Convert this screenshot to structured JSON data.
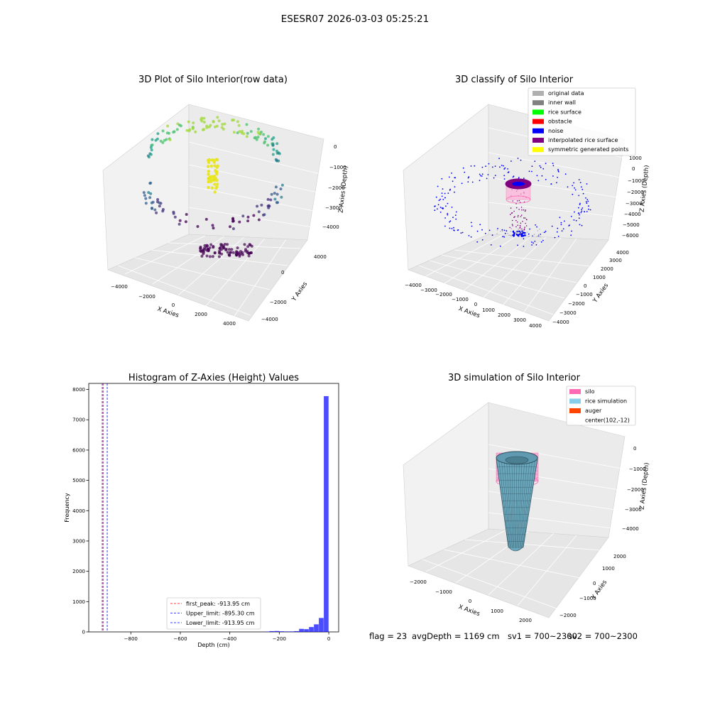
{
  "suptitle": "ESESR07 2026-03-03 05:25:21",
  "chart_data": [
    {
      "type": "scatter",
      "projection": "3d",
      "title": "3D Plot of Silo Interior(row data)",
      "xlabel": "X Axies",
      "ylabel": "Y Axies",
      "zlabel": "Z Axies (Depth)",
      "xticks": [
        "−4000",
        "−2000",
        "0",
        "2000",
        "4000"
      ],
      "yticks": [
        "−4000",
        "−2000",
        "0",
        "2000",
        "4000"
      ],
      "zticks": [
        "0",
        "−1000",
        "−2000",
        "−3000",
        "−4000"
      ],
      "xlim": [
        -4500,
        4500
      ],
      "ylim": [
        -4500,
        4500
      ],
      "zlim": [
        -4600,
        200
      ],
      "colormap": "viridis",
      "description_of_points": "ring of points around silo wall colored by depth, dense purple cluster at bottom, yellow vertical cluster near center top"
    },
    {
      "type": "scatter",
      "projection": "3d",
      "title": "3D classify of Silo Interior",
      "xlabel": "X Axies",
      "ylabel": "Y Axies",
      "zlabel": "Z Axies (Depth)",
      "xticks": [
        "−4000",
        "−3000",
        "−2000",
        "−1000",
        "0",
        "1000",
        "2000",
        "3000",
        "4000"
      ],
      "yticks": [
        "−4000",
        "−3000",
        "−2000",
        "−1000",
        "0",
        "1000",
        "2000",
        "3000",
        "4000"
      ],
      "zticks": [
        "1000",
        "0",
        "−1000",
        "−2000",
        "−3000",
        "−4000",
        "−5000",
        "−6000"
      ],
      "legend_position": "top-right",
      "legend": [
        {
          "label": "original data",
          "color": "#b0b0b0"
        },
        {
          "label": "inner wall",
          "color": "#808080"
        },
        {
          "label": "rice surface",
          "color": "#00ff00"
        },
        {
          "label": "obstacle",
          "color": "#ff0000"
        },
        {
          "label": "noise",
          "color": "#0000ff"
        },
        {
          "label": "interpolated rice surface",
          "color": "#800080"
        },
        {
          "label": "symmetric generated points",
          "color": "#ffff00"
        }
      ]
    },
    {
      "type": "bar",
      "title": "Histogram of Z-Axies (Height) Values",
      "xlabel": "Depth (cm)",
      "ylabel": "Frequency",
      "xlim": [
        -970,
        40
      ],
      "ylim": [
        0,
        8200
      ],
      "xticks": [
        -800,
        -600,
        -400,
        -200,
        0
      ],
      "xtick_labels": [
        "−800",
        "−600",
        "−400",
        "−200",
        "0"
      ],
      "yticks": [
        0,
        1000,
        2000,
        3000,
        4000,
        5000,
        6000,
        7000,
        8000
      ],
      "bar_color": "#0000ff",
      "bins": [
        {
          "x0": -260,
          "x1": -240,
          "count": 10
        },
        {
          "x0": -240,
          "x1": -220,
          "count": 25
        },
        {
          "x0": -220,
          "x1": -200,
          "count": 30
        },
        {
          "x0": -200,
          "x1": -180,
          "count": 20
        },
        {
          "x0": -180,
          "x1": -160,
          "count": 15
        },
        {
          "x0": -160,
          "x1": -140,
          "count": 15
        },
        {
          "x0": -140,
          "x1": -120,
          "count": 25
        },
        {
          "x0": -120,
          "x1": -100,
          "count": 100
        },
        {
          "x0": -100,
          "x1": -80,
          "count": 90
        },
        {
          "x0": -80,
          "x1": -60,
          "count": 160
        },
        {
          "x0": -60,
          "x1": -40,
          "count": 250
        },
        {
          "x0": -40,
          "x1": -20,
          "count": 460
        },
        {
          "x0": -20,
          "x1": 0,
          "count": 7780
        }
      ],
      "vlines": [
        {
          "x": -913.95,
          "color": "#ff0000",
          "label": "first_peak: -913.95 cm"
        },
        {
          "x": -895.3,
          "color": "#0000ff",
          "label": "Upper_limit: -895.30 cm"
        },
        {
          "x": -913.95,
          "color": "#0000ff",
          "label": "Lower_limit: -913.95 cm"
        }
      ],
      "legend_position": "bottom-center"
    },
    {
      "type": "surface",
      "projection": "3d",
      "title": "3D simulation of Silo Interior",
      "xlabel": "X Axies",
      "ylabel": "Y Axies",
      "zlabel": "Z Axies (Depth)",
      "xticks": [
        "−2000",
        "−1000",
        "0",
        "1000",
        "2000"
      ],
      "yticks": [
        "−2000",
        "−1000",
        "0",
        "1000",
        "2000"
      ],
      "zticks": [
        "0",
        "−1000",
        "−2000",
        "−3000",
        "−4000"
      ],
      "legend_position": "top-right",
      "legend": [
        {
          "label": "silo",
          "color": "#ff69b4"
        },
        {
          "label": "rice simulation",
          "color": "#87ceeb"
        },
        {
          "label": "auger",
          "color": "#ff4500"
        },
        {
          "label": "center(102,-12)",
          "color": ""
        }
      ]
    }
  ],
  "footer": {
    "flag": "flag = 23",
    "avg": "avgDepth = 1169 cm",
    "sv1": "sv1 = 700~2300",
    "sv2": "sv2 = 700~2300"
  }
}
